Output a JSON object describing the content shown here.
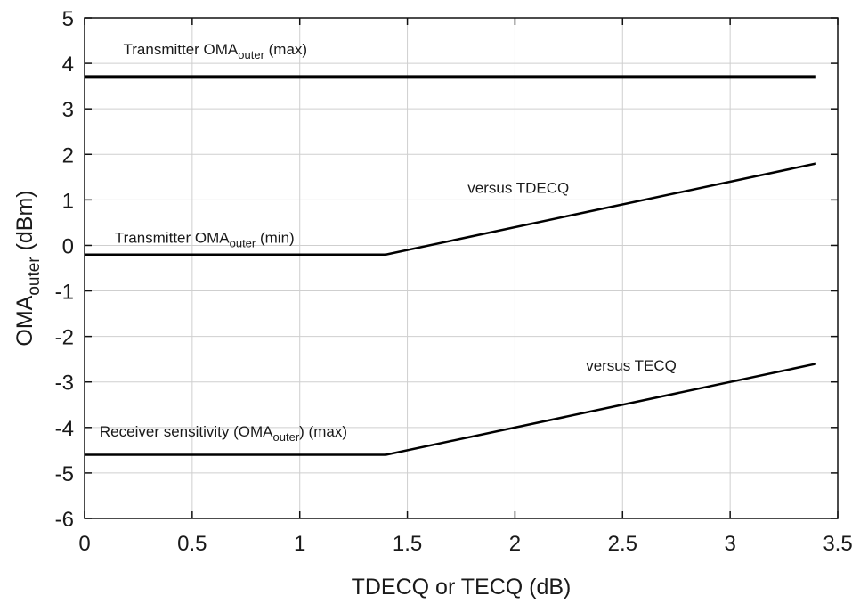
{
  "chart_data": {
    "type": "line",
    "xlabel": "TDECQ or TECQ (dB)",
    "ylabel": {
      "main": "OMA",
      "sub": "outer",
      "unit": " (dBm)"
    },
    "xlim": [
      0,
      3.5
    ],
    "ylim": [
      -6,
      5
    ],
    "xticks": [
      0,
      0.5,
      1,
      1.5,
      2,
      2.5,
      3,
      3.5
    ],
    "xtick_labels": [
      "0",
      "0.5",
      "1",
      "1.5",
      "2",
      "2.5",
      "3",
      "3.5"
    ],
    "yticks": [
      5,
      4,
      3,
      2,
      1,
      0,
      -1,
      -2,
      -3,
      -4,
      -5,
      -6
    ],
    "ytick_labels": [
      "5",
      "4",
      "3",
      "2",
      "1",
      "0",
      "-1",
      "-2",
      "-3",
      "-4",
      "-5",
      "-6"
    ],
    "grid": true,
    "series": [
      {
        "id": "tx-max",
        "color": "#000000",
        "width": 4,
        "x": [
          0,
          3.4
        ],
        "y": [
          3.7,
          3.7
        ]
      },
      {
        "id": "tx-min",
        "color": "#000000",
        "width": 2.5,
        "x": [
          0,
          1.4,
          3.4
        ],
        "y": [
          -0.2,
          -0.2,
          1.8
        ]
      },
      {
        "id": "rx-sens",
        "color": "#000000",
        "width": 2.5,
        "x": [
          0,
          1.4,
          3.4
        ],
        "y": [
          -4.6,
          -4.6,
          -2.6
        ]
      }
    ],
    "annotations": [
      {
        "id": "tx-max-label",
        "x": 0.18,
        "y": 4.2,
        "parts": [
          {
            "text": "Transmitter OMA"
          },
          {
            "text": "outer",
            "sub": true
          },
          {
            "text": " (max)"
          }
        ]
      },
      {
        "id": "tx-min-label",
        "x": 0.14,
        "y": 0.06,
        "parts": [
          {
            "text": "Transmitter OMA"
          },
          {
            "text": "outer",
            "sub": true
          },
          {
            "text": " (min)"
          }
        ]
      },
      {
        "id": "tdecq-label",
        "x": 1.78,
        "y": 1.15,
        "parts": [
          {
            "text": "versus TDECQ"
          }
        ]
      },
      {
        "id": "rx-sens-label",
        "x": 0.07,
        "y": -4.2,
        "parts": [
          {
            "text": "Receiver sensitivity (OMA"
          },
          {
            "text": "outer",
            "sub": true
          },
          {
            "text": ") (max)"
          }
        ]
      },
      {
        "id": "tecq-label",
        "x": 2.33,
        "y": -2.75,
        "parts": [
          {
            "text": "versus TECQ"
          }
        ]
      }
    ]
  }
}
